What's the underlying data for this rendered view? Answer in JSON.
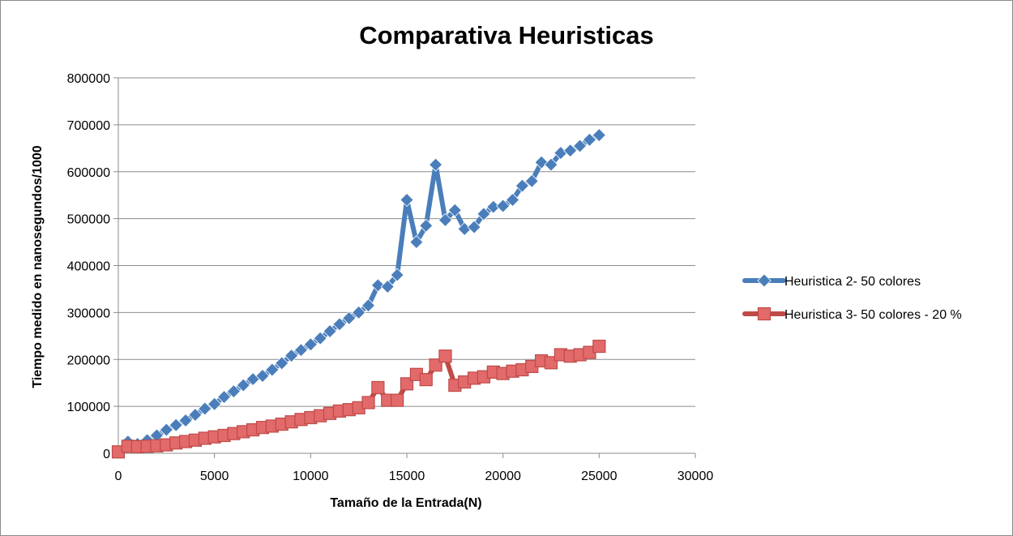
{
  "chart_data": {
    "type": "line",
    "title": "Comparativa Heuristicas",
    "xlabel": "Tamaño de la Entrada(N)",
    "ylabel": "Tiempo medido en nanosegundos/1000",
    "xlim": [
      0,
      30000
    ],
    "ylim": [
      0,
      800000
    ],
    "x_ticks": [
      "0",
      "5000",
      "10000",
      "15000",
      "20000",
      "25000",
      "30000"
    ],
    "y_ticks": [
      "0",
      "100000",
      "200000",
      "300000",
      "400000",
      "500000",
      "600000",
      "700000",
      "800000"
    ],
    "grid": "horizontal",
    "legend_position": "right",
    "series": [
      {
        "name": "Heuristica 2- 50 colores",
        "color": "#4a7ebb",
        "marker": "diamond",
        "x": [
          0,
          500,
          1000,
          1500,
          2000,
          2500,
          3000,
          3500,
          4000,
          4500,
          5000,
          5500,
          6000,
          6500,
          7000,
          7500,
          8000,
          8500,
          9000,
          9500,
          10000,
          10500,
          11000,
          11500,
          12000,
          12500,
          13000,
          13500,
          14000,
          14500,
          15000,
          15500,
          16000,
          16500,
          17000,
          17500,
          18000,
          18500,
          19000,
          19500,
          20000,
          20500,
          21000,
          21500,
          22000,
          22500,
          23000,
          23500,
          24000,
          24500,
          25000
        ],
        "y": [
          2000,
          25000,
          20000,
          28000,
          38000,
          50000,
          60000,
          70000,
          82000,
          95000,
          105000,
          120000,
          132000,
          145000,
          158000,
          165000,
          178000,
          192000,
          208000,
          220000,
          232000,
          245000,
          260000,
          275000,
          288000,
          300000,
          315000,
          358000,
          355000,
          380000,
          540000,
          450000,
          485000,
          615000,
          497000,
          518000,
          478000,
          482000,
          510000,
          525000,
          527000,
          540000,
          570000,
          580000,
          620000,
          615000,
          640000,
          645000,
          655000,
          668000,
          678000
        ]
      },
      {
        "name": "Heuristica 3- 50 colores - 20 %",
        "color": "#be4b48",
        "marker": "square",
        "x": [
          0,
          500,
          1000,
          1500,
          2000,
          2500,
          3000,
          3500,
          4000,
          4500,
          5000,
          5500,
          6000,
          6500,
          7000,
          7500,
          8000,
          8500,
          9000,
          9500,
          10000,
          10500,
          11000,
          11500,
          12000,
          12500,
          13000,
          13500,
          14000,
          14500,
          15000,
          15500,
          16000,
          16500,
          17000,
          17500,
          18000,
          18500,
          19000,
          19500,
          20000,
          20500,
          21000,
          21500,
          22000,
          22500,
          23000,
          23500,
          24000,
          24500,
          25000
        ],
        "y": [
          3000,
          15000,
          14000,
          15000,
          16000,
          18000,
          22000,
          25000,
          28000,
          32000,
          35000,
          38000,
          42000,
          46000,
          50000,
          55000,
          58000,
          62000,
          67000,
          72000,
          76000,
          80000,
          85000,
          90000,
          93000,
          97000,
          108000,
          140000,
          113000,
          113000,
          148000,
          168000,
          157000,
          188000,
          207000,
          145000,
          152000,
          160000,
          163000,
          173000,
          170000,
          175000,
          178000,
          185000,
          197000,
          193000,
          210000,
          207000,
          210000,
          215000,
          228000
        ]
      }
    ]
  }
}
